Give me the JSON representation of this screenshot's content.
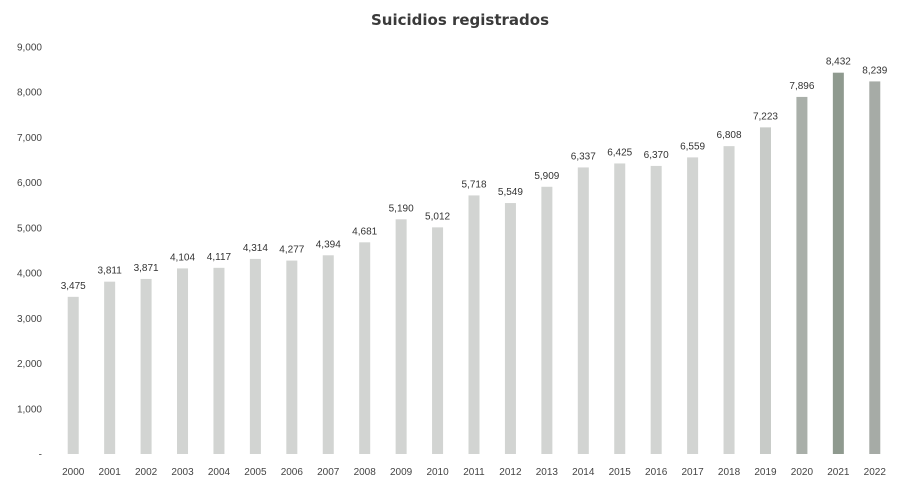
{
  "chart_data": {
    "type": "bar",
    "title": "Suicidios registrados",
    "xlabel": "",
    "ylabel": "",
    "ylim": [
      0,
      9000
    ],
    "yticks": [
      0,
      1000,
      2000,
      3000,
      4000,
      5000,
      6000,
      7000,
      8000,
      9000
    ],
    "ytick_labels": [
      "-",
      "1,000",
      "2,000",
      "3,000",
      "4,000",
      "5,000",
      "6,000",
      "7,000",
      "8,000",
      "9,000"
    ],
    "categories": [
      "2000",
      "2001",
      "2002",
      "2003",
      "2004",
      "2005",
      "2006",
      "2007",
      "2008",
      "2009",
      "2010",
      "2011",
      "2012",
      "2013",
      "2014",
      "2015",
      "2016",
      "2017",
      "2018",
      "2019",
      "2020",
      "2021",
      "2022"
    ],
    "values": [
      3475,
      3811,
      3871,
      4104,
      4117,
      4314,
      4277,
      4394,
      4681,
      5190,
      5012,
      5718,
      5549,
      5909,
      6337,
      6425,
      6370,
      6559,
      6808,
      7223,
      7896,
      8432,
      8239
    ],
    "data_labels": [
      "3,475",
      "3,811",
      "3,871",
      "4,104",
      "4,117",
      "4,314",
      "4,277",
      "4,394",
      "4,681",
      "5,190",
      "5,012",
      "5,718",
      "5,549",
      "5,909",
      "6,337",
      "6,425",
      "6,370",
      "6,559",
      "6,808",
      "7,223",
      "7,896",
      "8,432",
      "8,239"
    ],
    "bar_colors": [
      "#d2d4d2",
      "#d2d4d2",
      "#d2d4d2",
      "#d2d4d2",
      "#d2d4d2",
      "#d2d4d2",
      "#d2d4d2",
      "#d2d4d2",
      "#d2d4d2",
      "#d2d4d2",
      "#d2d4d2",
      "#d2d4d2",
      "#d2d4d2",
      "#d2d4d2",
      "#d2d4d2",
      "#d2d4d2",
      "#d2d4d2",
      "#d2d4d2",
      "#d2d4d2",
      "#c8cbc8",
      "#a9afa9",
      "#8f9a8f",
      "#a6aba6"
    ],
    "grid": false,
    "legend": "none"
  }
}
